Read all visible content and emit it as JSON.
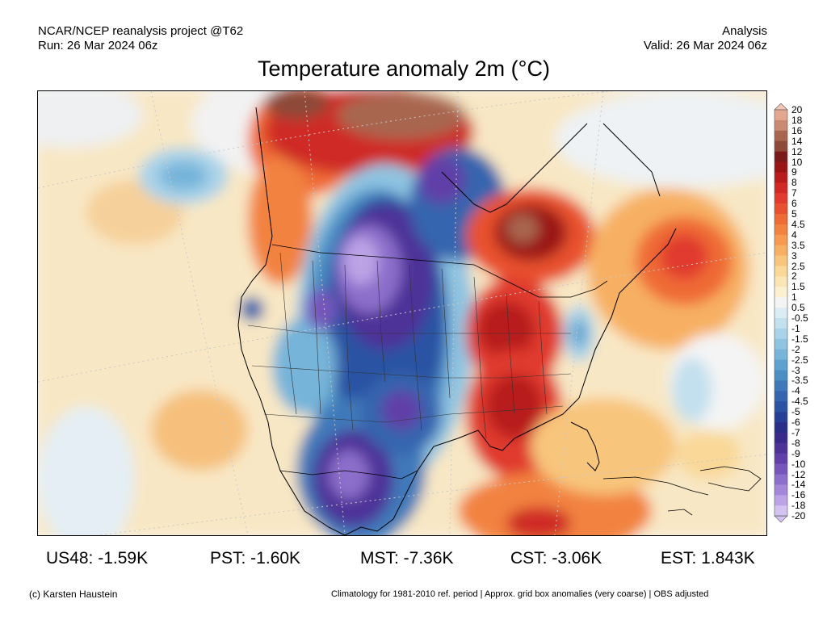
{
  "header": {
    "left_line1": "NCAR/NCEP reanalysis project @T62",
    "left_line2": "Run: 26 Mar 2024 06z",
    "right_line1": "Analysis",
    "right_line2": "Valid: 26 Mar 2024 06z"
  },
  "title": "Temperature anomaly 2m (°C)",
  "colorbar": {
    "ticks": [
      "20",
      "18",
      "16",
      "14",
      "12",
      "10",
      "9",
      "8",
      "7",
      "6",
      "5",
      "4.5",
      "4",
      "3.5",
      "3",
      "2.5",
      "2",
      "1.5",
      "1",
      "0.5",
      "-0.5",
      "-1",
      "-1.5",
      "-2",
      "-2.5",
      "-3",
      "-3.5",
      "-4",
      "-4.5",
      "-5",
      "-6",
      "-7",
      "-8",
      "-9",
      "-10",
      "-12",
      "-14",
      "-16",
      "-18",
      "-20"
    ],
    "colors": [
      "#f3c6b5",
      "#e2a88f",
      "#c98a72",
      "#a9664f",
      "#8d4a38",
      "#7a1a1a",
      "#9a1515",
      "#b81c1c",
      "#cf2a26",
      "#e03b2e",
      "#e8512f",
      "#ef6b35",
      "#f2823f",
      "#f59a50",
      "#f7b063",
      "#f8c57c",
      "#f9d898",
      "#fae6b4",
      "#fbf0d0",
      "#f4f4f4",
      "#dcecf4",
      "#c3e0ee",
      "#a9d3e9",
      "#8fc4e1",
      "#76b4d9",
      "#5fa2cf",
      "#4c8ec4",
      "#3f79b9",
      "#3465ae",
      "#2b52a3",
      "#263f96",
      "#2a2e88",
      "#3a2a8c",
      "#4d3298",
      "#6040a8",
      "#7656bb",
      "#8c6ecb",
      "#a487d9",
      "#bca3e6",
      "#d4c2f0"
    ]
  },
  "stats": [
    {
      "label": "US48: -1.59K"
    },
    {
      "label": "PST: -1.60K"
    },
    {
      "label": "MST: -7.36K"
    },
    {
      "label": "CST: -3.06K"
    },
    {
      "label": "EST: 1.843K"
    }
  ],
  "footer": {
    "left": "(c) Karsten Haustein",
    "right": "Climatology for 1981-2010 ref. period | Approx. grid box anomalies (very coarse) | OBS adjusted"
  }
}
